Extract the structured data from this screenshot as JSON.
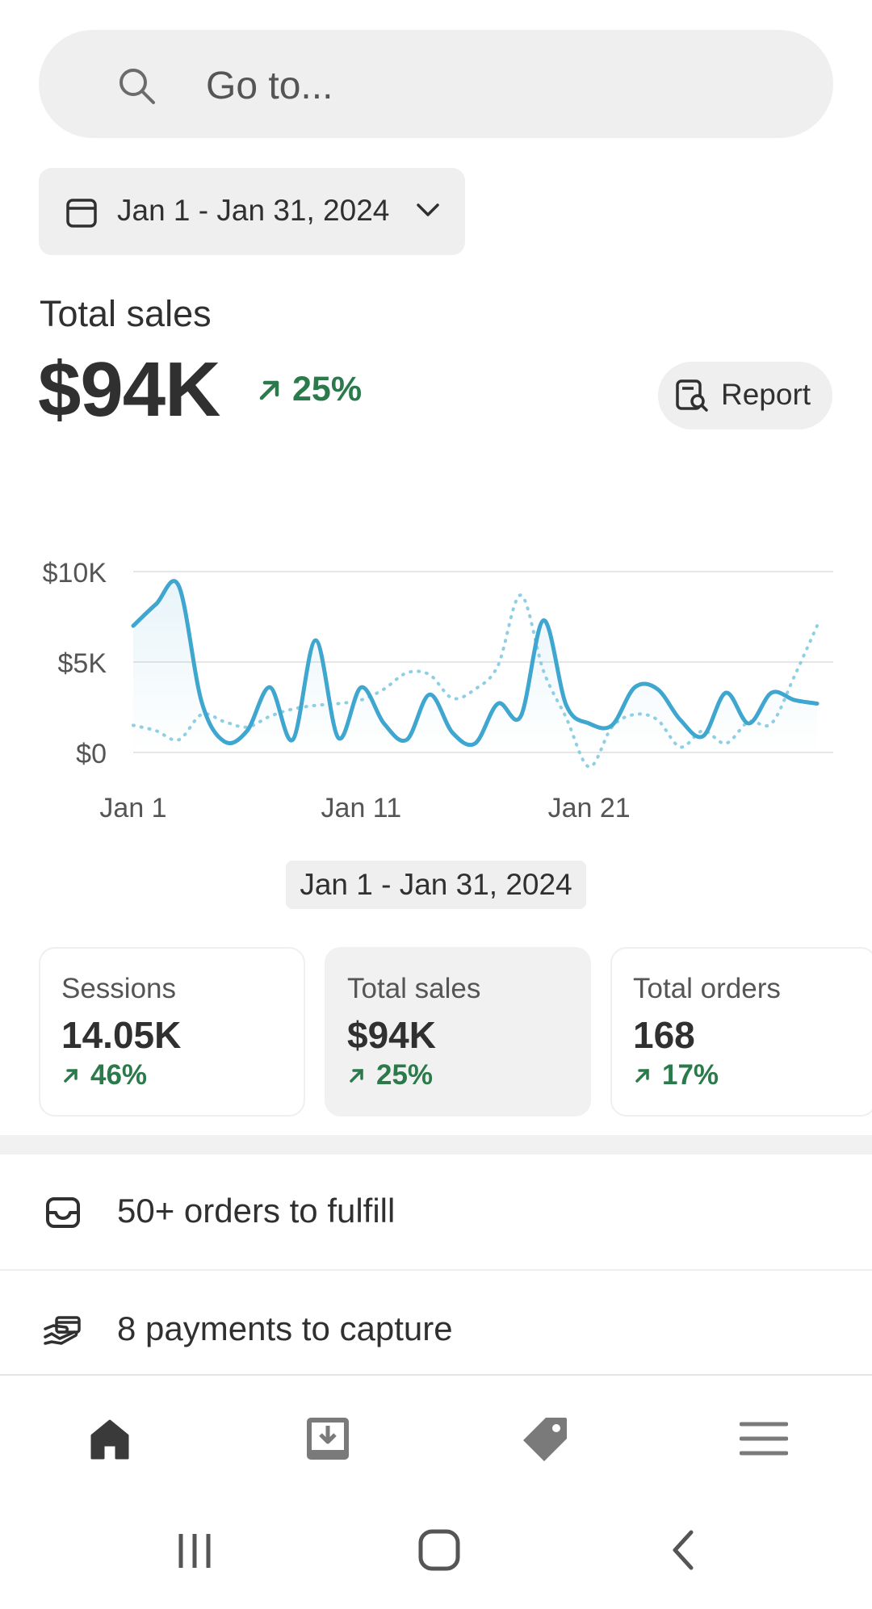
{
  "search": {
    "placeholder": "Go to..."
  },
  "date_range": {
    "label": "Jan 1 - Jan 31, 2024"
  },
  "summary": {
    "label": "Total sales",
    "value": "$94K",
    "change": "25%",
    "report_label": "Report"
  },
  "chart_data": {
    "type": "line",
    "title": "",
    "xlabel": "",
    "ylabel": "",
    "x_tick_labels": [
      "Jan 1",
      "Jan 11",
      "Jan 21"
    ],
    "y_tick_labels": [
      "$10K",
      "$5K",
      "$0"
    ],
    "ylim": [
      0,
      10000
    ],
    "grid": true,
    "caption": "Jan 1 - Jan 31, 2024",
    "series": [
      {
        "style": "solid",
        "color": "#3ea6cf",
        "x": [
          1,
          2,
          3,
          4,
          5,
          6,
          7,
          8,
          9,
          10,
          11,
          12,
          13,
          14,
          15,
          16,
          17,
          18,
          19,
          20,
          21,
          22,
          23,
          24,
          25,
          26,
          27,
          28,
          29,
          30,
          31
        ],
        "values": [
          7000,
          8200,
          9200,
          2800,
          600,
          1200,
          3600,
          700,
          6200,
          800,
          3600,
          1600,
          700,
          3200,
          1100,
          500,
          2700,
          2000,
          7300,
          2600,
          1600,
          1500,
          3600,
          3500,
          1800,
          900,
          3300,
          1600,
          3300,
          2900,
          2700
        ]
      },
      {
        "style": "dotted",
        "color": "#8ecfe3",
        "x": [
          1,
          2,
          3,
          4,
          5,
          6,
          7,
          8,
          9,
          10,
          11,
          12,
          13,
          14,
          15,
          16,
          17,
          18,
          19,
          20,
          21,
          22,
          23,
          24,
          25,
          26,
          27,
          28,
          29,
          30,
          31
        ],
        "values": [
          1500,
          1200,
          700,
          2100,
          1700,
          1400,
          2000,
          2400,
          2600,
          2700,
          2900,
          3500,
          4400,
          4300,
          3000,
          3500,
          4800,
          8700,
          4500,
          1900,
          -800,
          1400,
          2100,
          1800,
          300,
          1200,
          500,
          1700,
          1600,
          4200,
          7000
        ]
      }
    ]
  },
  "metrics": [
    {
      "label": "Sessions",
      "value": "14.05K",
      "change": "46%"
    },
    {
      "label": "Total sales",
      "value": "$94K",
      "change": "25%"
    },
    {
      "label": "Total orders",
      "value": "168",
      "change": "17%"
    }
  ],
  "tasks": [
    {
      "label": "50+ orders to fulfill",
      "icon": "inbox-icon"
    },
    {
      "label": "8 payments to capture",
      "icon": "payment-icon"
    }
  ],
  "tabs": [
    "home-icon",
    "orders-icon",
    "products-icon",
    "menu-icon"
  ],
  "colors": {
    "accent_green": "#2b7a4b",
    "chart_line": "#3ea6cf",
    "chart_dotted": "#8ecfe3"
  }
}
